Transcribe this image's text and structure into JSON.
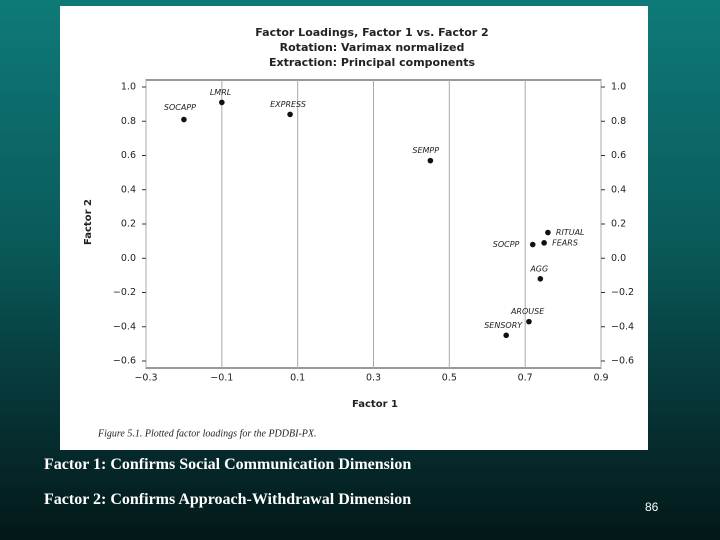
{
  "chart_data": {
    "type": "scatter",
    "title": "Factor Loadings, Factor 1 vs. Factor 2",
    "subtitle": [
      "Rotation: Varimax normalized",
      "Extraction: Principal components"
    ],
    "x_label": "Factor 1",
    "y_label": "Factor 2",
    "point_labels": [
      "SOCAPP",
      "LMRL",
      "EXPRESS",
      "SEMPP",
      "RITUAL",
      "FEARS",
      "SOCPP",
      "AGG",
      "AROUSE",
      "SENSORY"
    ],
    "x": [
      -0.2,
      -0.1,
      0.08,
      0.45,
      0.76,
      0.75,
      0.72,
      0.74,
      0.71,
      0.65
    ],
    "values": [
      0.81,
      0.91,
      0.84,
      0.57,
      0.15,
      0.09,
      0.08,
      -0.12,
      -0.37,
      -0.45
    ],
    "color": "#111111",
    "xlim": [
      -0.3,
      0.9
    ],
    "ylim": [
      -0.6,
      1.0
    ],
    "xticks": [
      {
        "value": -0.3,
        "label": "−0.3"
      },
      {
        "value": -0.1,
        "label": "−0.1"
      },
      0.1,
      0.3,
      0.5,
      0.7,
      0.9
    ],
    "yticks": [
      {
        "value": 1.0,
        "label": "1.0"
      },
      0.8,
      0.6,
      0.4,
      0.2,
      {
        "value": 0,
        "label": "0.0"
      },
      {
        "value": -0.2,
        "label": "−0.2"
      },
      {
        "value": -0.4,
        "label": "−0.4"
      },
      {
        "value": -0.6,
        "label": "−0.6"
      }
    ],
    "grid": true
  },
  "caption": "Figure 5.1. Plotted factor loadings for the PDDBI-PX.",
  "notes": [
    "Factor 1: Confirms Social Communication Dimension",
    "Factor 2: Confirms Approach-Withdrawal Dimension"
  ],
  "page_number": "86"
}
